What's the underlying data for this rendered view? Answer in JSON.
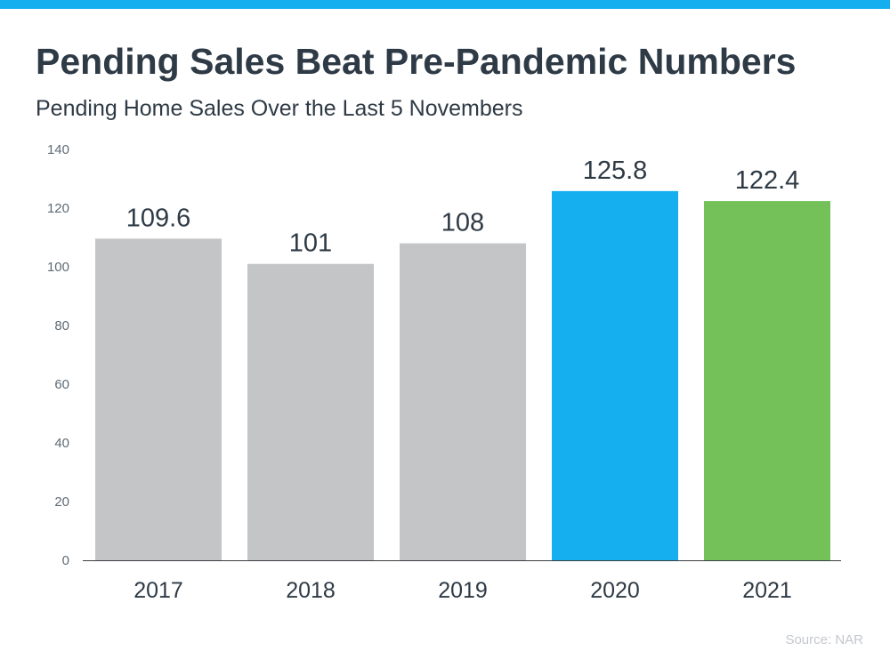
{
  "colors": {
    "topbar": "#15aeef",
    "gray": "#c4c5c7",
    "blue": "#15aeef",
    "green": "#74c15a"
  },
  "chart_data": {
    "type": "bar",
    "title": "Pending Sales Beat Pre-Pandemic Numbers",
    "subtitle": "Pending Home Sales Over the Last 5 Novembers",
    "categories": [
      "2017",
      "2018",
      "2019",
      "2020",
      "2021"
    ],
    "values": [
      109.6,
      101,
      108,
      125.8,
      122.4
    ],
    "data_labels": [
      "109.6",
      "101",
      "108",
      "125.8",
      "122.4"
    ],
    "bar_colors": [
      "#c4c5c7",
      "#c4c5c7",
      "#c4c5c7",
      "#15aeef",
      "#74c15a"
    ],
    "ylim": [
      0,
      140
    ],
    "yticks": [
      0,
      20,
      40,
      60,
      80,
      100,
      120,
      140
    ],
    "grid": false,
    "xlabel": "",
    "ylabel": ""
  },
  "source": "Source: NAR"
}
